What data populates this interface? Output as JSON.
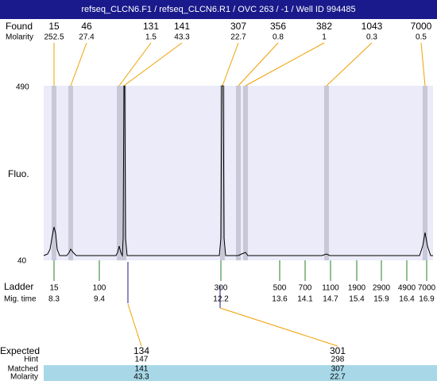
{
  "header": {
    "title": "refseq_CLCN6.F1 / refseq_CLCN6.R1 / OVC 263 / -1 / Well ID 994485"
  },
  "found": {
    "label": "Found",
    "sublabel": "Molarity",
    "peaks": [
      {
        "size": 15,
        "molarity": 252.5
      },
      {
        "size": 46,
        "molarity": 27.4
      },
      {
        "size": 131,
        "molarity": 1.5
      },
      {
        "size": 141,
        "molarity": 43.3
      },
      {
        "size": 307,
        "molarity": 22.7
      },
      {
        "size": 356,
        "molarity": 0.8
      },
      {
        "size": 382,
        "molarity": 1
      },
      {
        "size": 1043,
        "molarity": 0.3
      },
      {
        "size": 7000,
        "molarity": 0.5
      }
    ]
  },
  "axis": {
    "label": "Fluo.",
    "top": 490,
    "bottom": 40
  },
  "ladder": {
    "label": "Ladder",
    "sublabel": "Mig. time",
    "bands": [
      {
        "size": 15,
        "time": 8.3
      },
      {
        "size": 100,
        "time": 9.4
      },
      {
        "size": 300,
        "time": 12.2
      },
      {
        "size": 500,
        "time": 13.6
      },
      {
        "size": 700,
        "time": 14.1
      },
      {
        "size": 1100,
        "time": 14.7
      },
      {
        "size": 1900,
        "time": 15.4
      },
      {
        "size": 2900,
        "time": 15.9
      },
      {
        "size": 4900,
        "time": 16.4
      },
      {
        "size": 7000,
        "time": 16.9
      }
    ]
  },
  "expected": {
    "labels": [
      "Expected",
      "Hint",
      "Matched",
      "Molarity"
    ],
    "columns": [
      {
        "expected": 134,
        "hint": 147,
        "matched": 141,
        "molarity": 43.3
      },
      {
        "expected": 301,
        "hint": 298,
        "matched": 307,
        "molarity": 22.7
      }
    ]
  }
}
